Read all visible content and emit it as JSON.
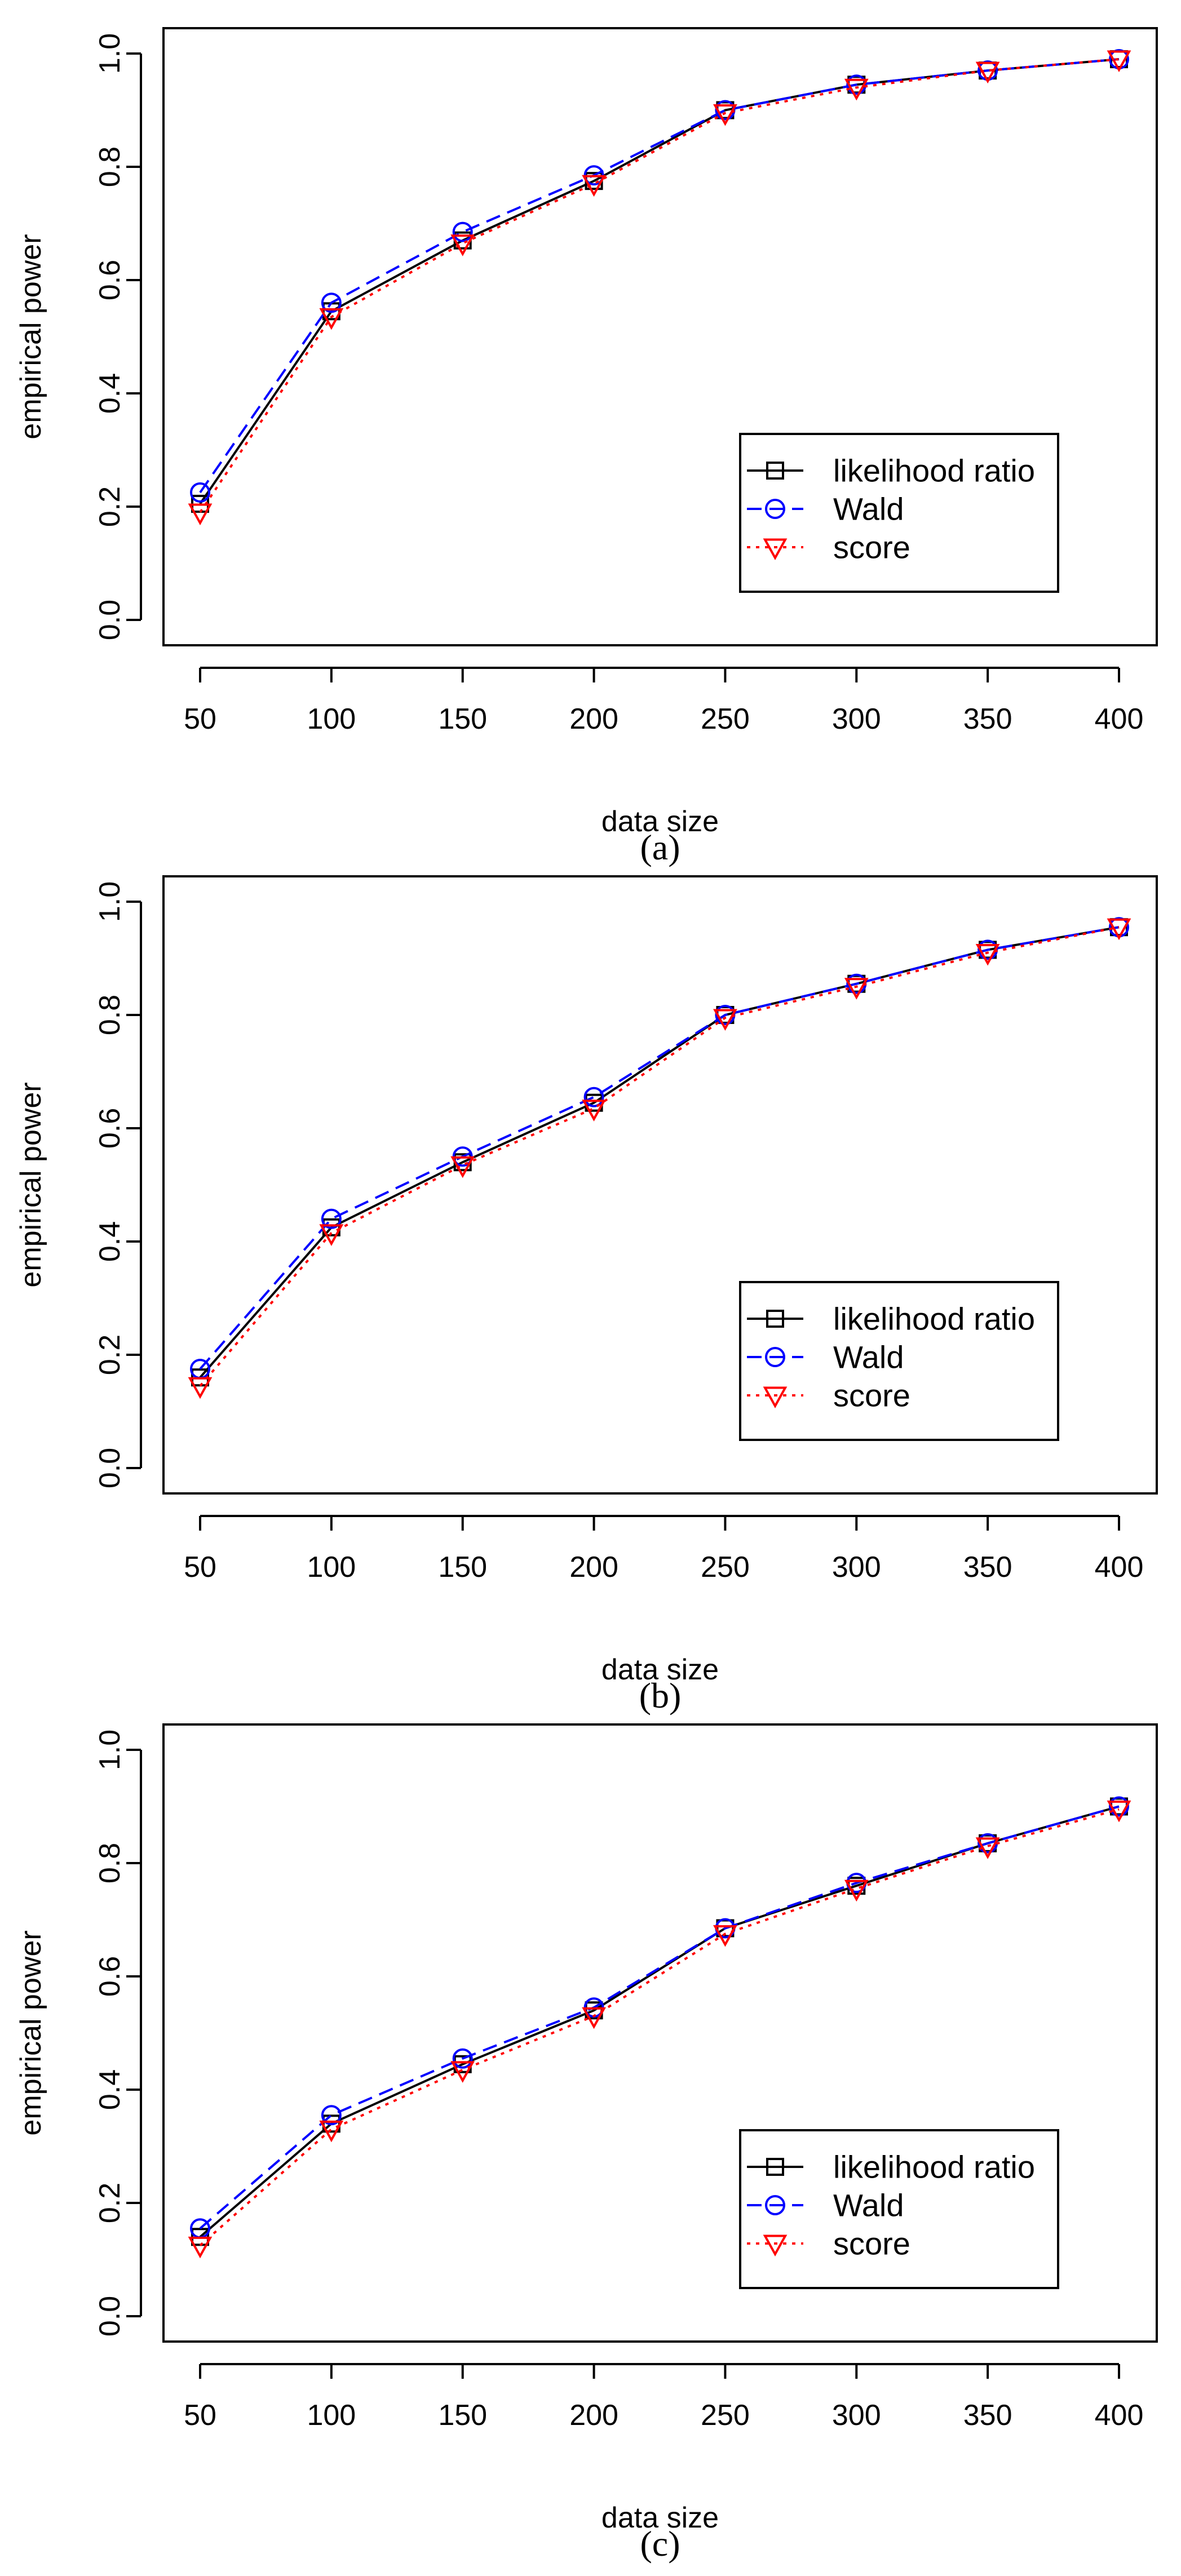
{
  "chart_data": [
    {
      "type": "line",
      "caption": "(a)",
      "caption_letter": "a",
      "xlabel": "data size",
      "ylabel": "empirical power",
      "x": [
        50,
        100,
        150,
        200,
        250,
        300,
        350,
        400
      ],
      "x_ticks": [
        "50",
        "100",
        "150",
        "200",
        "250",
        "300",
        "350",
        "400"
      ],
      "y_ticks": [
        "0.0",
        "0.2",
        "0.4",
        "0.6",
        "0.8",
        "1.0"
      ],
      "xlim": [
        50,
        400
      ],
      "ylim": [
        0,
        1
      ],
      "legend_position": "bottom-right",
      "series": [
        {
          "name": "likelihood ratio",
          "color": "#000000",
          "marker": "square",
          "line": "solid",
          "values": [
            0.205,
            0.545,
            0.67,
            0.775,
            0.9,
            0.945,
            0.97,
            0.99
          ]
        },
        {
          "name": "Wald",
          "color": "#0000ff",
          "marker": "circle",
          "line": "dashed",
          "values": [
            0.225,
            0.56,
            0.685,
            0.785,
            0.9,
            0.945,
            0.97,
            0.99
          ]
        },
        {
          "name": "score",
          "color": "#ff0000",
          "marker": "triangle-down",
          "line": "dotted",
          "values": [
            0.19,
            0.535,
            0.665,
            0.77,
            0.895,
            0.94,
            0.97,
            0.99
          ]
        }
      ]
    },
    {
      "type": "line",
      "caption": "(b)",
      "caption_letter": "b",
      "xlabel": "data size",
      "ylabel": "empirical power",
      "x": [
        50,
        100,
        150,
        200,
        250,
        300,
        350,
        400
      ],
      "x_ticks": [
        "50",
        "100",
        "150",
        "200",
        "250",
        "300",
        "350",
        "400"
      ],
      "y_ticks": [
        "0.0",
        "0.2",
        "0.4",
        "0.6",
        "0.8",
        "1.0"
      ],
      "xlim": [
        50,
        400
      ],
      "ylim": [
        0,
        1
      ],
      "legend_position": "bottom-right",
      "series": [
        {
          "name": "likelihood ratio",
          "color": "#000000",
          "marker": "square",
          "line": "solid",
          "values": [
            0.16,
            0.425,
            0.54,
            0.645,
            0.8,
            0.855,
            0.915,
            0.955
          ]
        },
        {
          "name": "Wald",
          "color": "#0000ff",
          "marker": "circle",
          "line": "dashed",
          "values": [
            0.175,
            0.44,
            0.55,
            0.655,
            0.8,
            0.855,
            0.915,
            0.955
          ]
        },
        {
          "name": "score",
          "color": "#ff0000",
          "marker": "triangle-down",
          "line": "dotted",
          "values": [
            0.145,
            0.415,
            0.535,
            0.635,
            0.795,
            0.85,
            0.91,
            0.955
          ]
        }
      ]
    },
    {
      "type": "line",
      "caption": "(c)",
      "caption_letter": "c",
      "xlabel": "data size",
      "ylabel": "empirical power",
      "x": [
        50,
        100,
        150,
        200,
        250,
        300,
        350,
        400
      ],
      "x_ticks": [
        "50",
        "100",
        "150",
        "200",
        "250",
        "300",
        "350",
        "400"
      ],
      "y_ticks": [
        "0.0",
        "0.2",
        "0.4",
        "0.6",
        "0.8",
        "1.0"
      ],
      "xlim": [
        50,
        400
      ],
      "ylim": [
        0,
        1
      ],
      "legend_position": "bottom-right",
      "series": [
        {
          "name": "likelihood ratio",
          "color": "#000000",
          "marker": "square",
          "line": "solid",
          "values": [
            0.14,
            0.34,
            0.445,
            0.54,
            0.685,
            0.76,
            0.835,
            0.9
          ]
        },
        {
          "name": "Wald",
          "color": "#0000ff",
          "marker": "circle",
          "line": "dashed",
          "values": [
            0.155,
            0.355,
            0.455,
            0.545,
            0.685,
            0.765,
            0.835,
            0.9
          ]
        },
        {
          "name": "score",
          "color": "#ff0000",
          "marker": "triangle-down",
          "line": "dotted",
          "values": [
            0.125,
            0.33,
            0.435,
            0.53,
            0.675,
            0.755,
            0.83,
            0.895
          ]
        }
      ]
    }
  ]
}
